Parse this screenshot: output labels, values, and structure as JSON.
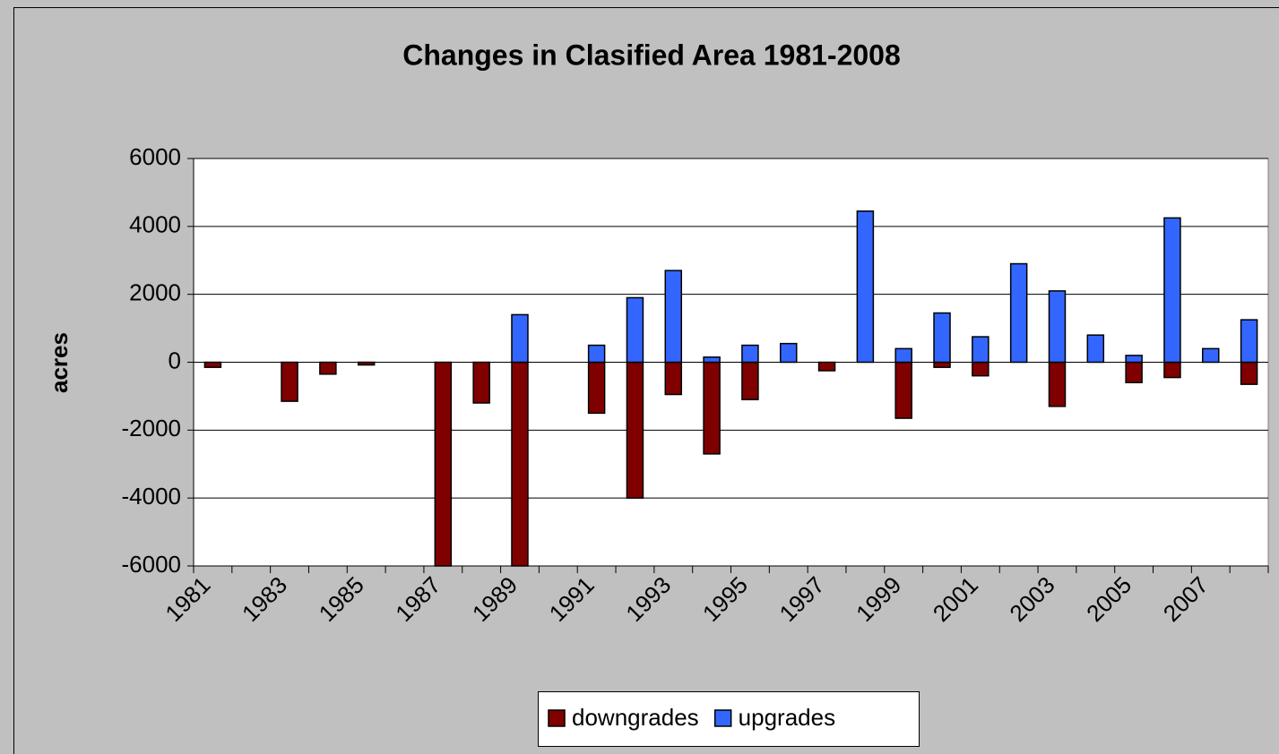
{
  "chart_data": {
    "type": "bar",
    "title": "Changes in Clasified Area 1981-2008",
    "y_label": "acres",
    "categories": [
      "1981",
      null,
      "1983",
      null,
      "1985",
      null,
      "1987",
      null,
      "1989",
      null,
      "1991",
      null,
      "1993",
      null,
      "1995",
      null,
      "1997",
      null,
      "1999",
      null,
      "2001",
      null,
      "2003",
      null,
      "2005",
      null,
      "2007",
      null
    ],
    "series": [
      {
        "name": "downgrades",
        "color": "#800000",
        "values": [
          -150,
          0,
          -1150,
          -350,
          -80,
          0,
          -6000,
          -1200,
          -6000,
          0,
          -1500,
          -4000,
          -950,
          -2700,
          -1100,
          0,
          -250,
          0,
          -1650,
          -150,
          -400,
          0,
          -1300,
          0,
          -600,
          -450,
          0,
          -650
        ]
      },
      {
        "name": "upgrades",
        "color": "#3366ff",
        "values": [
          0,
          0,
          0,
          0,
          0,
          0,
          0,
          0,
          1400,
          0,
          500,
          1900,
          2700,
          150,
          500,
          550,
          0,
          4450,
          400,
          1450,
          750,
          2900,
          2100,
          800,
          200,
          4250,
          400,
          1250
        ]
      }
    ],
    "ylim": [
      -6000,
      6000
    ],
    "yticks": [
      -6000,
      -4000,
      -2000,
      0,
      2000,
      4000,
      6000
    ],
    "grid": true,
    "bar_overlap": true,
    "legend": "bottom"
  }
}
